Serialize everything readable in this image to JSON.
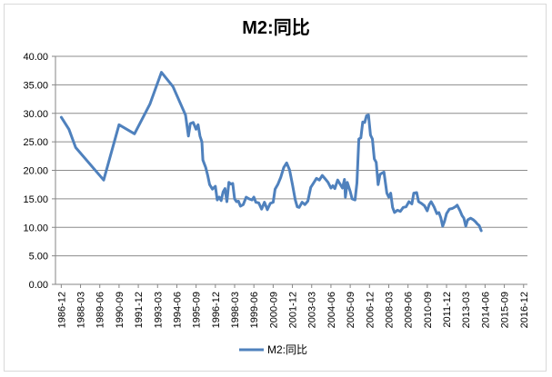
{
  "chart_data": {
    "type": "line",
    "title": "M2:同比",
    "xlabel": "",
    "ylabel": "",
    "ylim": [
      0,
      40
    ],
    "yticks": [
      "0.00",
      "5.00",
      "10.00",
      "15.00",
      "20.00",
      "25.00",
      "30.00",
      "35.00",
      "40.00"
    ],
    "categories": [
      "1986-12",
      "1988-03",
      "1989-06",
      "1990-09",
      "1991-12",
      "1993-03",
      "1994-06",
      "1995-09",
      "1996-12",
      "1998-03",
      "1999-06",
      "2000-09",
      "2001-12",
      "2003-03",
      "2004-06",
      "2005-09",
      "2006-12",
      "2008-03",
      "2009-06",
      "2010-09",
      "2011-12",
      "2013-03",
      "2014-06",
      "2015-09",
      "2016-12"
    ],
    "grid": true,
    "legend_position": "bottom",
    "series": [
      {
        "name": "M2:同比",
        "color": "#4f81bd",
        "points": [
          [
            0.0,
            29.3
          ],
          [
            0.4,
            27.2
          ],
          [
            0.75,
            24.0
          ],
          [
            2.2,
            18.3
          ],
          [
            3.0,
            28.0
          ],
          [
            3.8,
            26.4
          ],
          [
            4.6,
            31.6
          ],
          [
            5.2,
            37.2
          ],
          [
            5.8,
            34.7
          ],
          [
            6.45,
            29.7
          ],
          [
            6.6,
            26.0
          ],
          [
            6.7,
            28.2
          ],
          [
            6.85,
            28.4
          ],
          [
            7.0,
            27.2
          ],
          [
            7.1,
            28.0
          ],
          [
            7.2,
            26.0
          ],
          [
            7.3,
            25.0
          ],
          [
            7.35,
            21.8
          ],
          [
            7.5,
            20.5
          ],
          [
            7.6,
            19.1
          ],
          [
            7.7,
            17.5
          ],
          [
            7.85,
            16.7
          ],
          [
            8.0,
            17.2
          ],
          [
            8.1,
            14.8
          ],
          [
            8.2,
            15.3
          ],
          [
            8.3,
            14.7
          ],
          [
            8.4,
            16.2
          ],
          [
            8.5,
            16.8
          ],
          [
            8.6,
            14.5
          ],
          [
            8.7,
            17.9
          ],
          [
            8.8,
            17.6
          ],
          [
            8.9,
            17.7
          ],
          [
            9.0,
            15.0
          ],
          [
            9.1,
            14.5
          ],
          [
            9.2,
            14.6
          ],
          [
            9.3,
            13.7
          ],
          [
            9.45,
            14.0
          ],
          [
            9.6,
            15.3
          ],
          [
            9.75,
            15.0
          ],
          [
            9.9,
            14.8
          ],
          [
            10.0,
            15.3
          ],
          [
            10.1,
            14.4
          ],
          [
            10.25,
            14.3
          ],
          [
            10.4,
            13.2
          ],
          [
            10.55,
            14.4
          ],
          [
            10.7,
            13.1
          ],
          [
            10.85,
            14.2
          ],
          [
            11.0,
            14.4
          ],
          [
            11.1,
            16.7
          ],
          [
            11.25,
            17.6
          ],
          [
            11.4,
            18.8
          ],
          [
            11.55,
            20.5
          ],
          [
            11.7,
            21.3
          ],
          [
            11.85,
            20.1
          ],
          [
            12.0,
            17.5
          ],
          [
            12.15,
            14.8
          ],
          [
            12.25,
            13.6
          ],
          [
            12.35,
            13.5
          ],
          [
            12.5,
            14.4
          ],
          [
            12.65,
            14.0
          ],
          [
            12.8,
            14.6
          ],
          [
            12.95,
            17.0
          ],
          [
            13.1,
            17.8
          ],
          [
            13.25,
            18.6
          ],
          [
            13.4,
            18.3
          ],
          [
            13.55,
            19.1
          ],
          [
            13.7,
            18.5
          ],
          [
            13.85,
            17.9
          ],
          [
            14.0,
            16.9
          ],
          [
            14.1,
            17.3
          ],
          [
            14.2,
            16.8
          ],
          [
            14.35,
            18.3
          ],
          [
            14.45,
            17.7
          ],
          [
            14.6,
            16.9
          ],
          [
            14.7,
            18.4
          ],
          [
            14.75,
            15.3
          ],
          [
            14.85,
            17.9
          ],
          [
            15.0,
            16.3
          ],
          [
            15.1,
            15.0
          ],
          [
            15.25,
            14.8
          ],
          [
            15.35,
            17.8
          ],
          [
            15.45,
            25.5
          ],
          [
            15.55,
            25.7
          ],
          [
            15.65,
            28.5
          ],
          [
            15.75,
            28.4
          ],
          [
            15.85,
            29.6
          ],
          [
            15.95,
            29.7
          ],
          [
            16.05,
            26.2
          ],
          [
            16.15,
            25.5
          ],
          [
            16.25,
            22.0
          ],
          [
            16.35,
            21.4
          ],
          [
            16.45,
            17.5
          ],
          [
            16.55,
            19.3
          ],
          [
            16.65,
            19.5
          ],
          [
            16.75,
            19.7
          ],
          [
            16.9,
            16.0
          ],
          [
            17.0,
            15.3
          ],
          [
            17.1,
            16.0
          ],
          [
            17.2,
            13.5
          ],
          [
            17.3,
            12.6
          ],
          [
            17.45,
            13.0
          ],
          [
            17.6,
            12.8
          ],
          [
            17.75,
            13.5
          ],
          [
            17.9,
            13.6
          ],
          [
            18.05,
            14.5
          ],
          [
            18.2,
            14.1
          ],
          [
            18.3,
            16.0
          ],
          [
            18.45,
            16.1
          ],
          [
            18.55,
            14.5
          ],
          [
            18.7,
            14.2
          ],
          [
            18.85,
            13.8
          ],
          [
            19.0,
            12.9
          ],
          [
            19.1,
            14.0
          ],
          [
            19.2,
            14.5
          ],
          [
            19.35,
            13.6
          ],
          [
            19.5,
            12.4
          ],
          [
            19.6,
            12.6
          ],
          [
            19.7,
            11.7
          ],
          [
            19.8,
            10.2
          ],
          [
            19.9,
            11.1
          ],
          [
            20.0,
            12.4
          ],
          [
            20.15,
            13.2
          ],
          [
            20.3,
            13.3
          ],
          [
            20.45,
            13.6
          ],
          [
            20.55,
            13.9
          ],
          [
            20.7,
            12.9
          ],
          [
            20.8,
            12.1
          ],
          [
            20.9,
            11.6
          ],
          [
            21.0,
            10.2
          ],
          [
            21.1,
            11.3
          ],
          [
            21.25,
            11.6
          ],
          [
            21.4,
            11.3
          ],
          [
            21.5,
            11.0
          ],
          [
            21.6,
            10.6
          ],
          [
            21.7,
            10.3
          ],
          [
            21.8,
            9.4
          ]
        ]
      }
    ]
  }
}
